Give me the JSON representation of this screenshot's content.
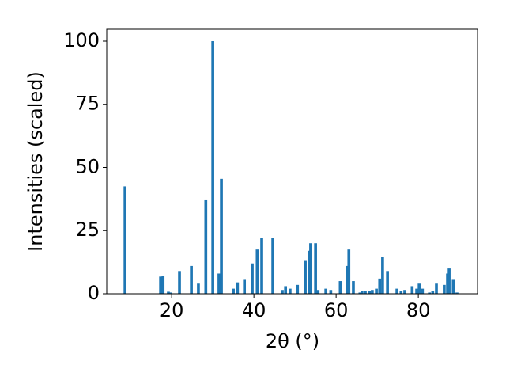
{
  "chart_data": {
    "type": "bar",
    "xlabel": "2θ (°)",
    "ylabel": "Intensities (scaled)",
    "x": [
      8.65,
      17.3,
      17.9,
      19.2,
      19.8,
      21.9,
      24.8,
      26.5,
      28.3,
      30.0,
      31.5,
      32.1,
      35.0,
      36.0,
      37.7,
      39.6,
      40.8,
      41.9,
      44.6,
      46.9,
      47.7,
      48.8,
      50.6,
      52.5,
      53.5,
      53.8,
      55.0,
      55.6,
      57.5,
      58.7,
      61.0,
      62.7,
      63.1,
      64.2,
      65.8,
      66.3,
      67.1,
      68.1,
      68.8,
      69.8,
      70.6,
      71.3,
      72.5,
      74.8,
      75.8,
      76.7,
      78.5,
      79.6,
      80.2,
      81.0,
      82.7,
      83.5,
      84.4,
      86.3,
      87.1,
      87.5,
      88.5,
      89.4
    ],
    "values": [
      42.5,
      6.8,
      7,
      0.8,
      0.5,
      9,
      11,
      4,
      37,
      100,
      8,
      45.5,
      2,
      4.5,
      5.5,
      12,
      17.5,
      22,
      22,
      1.5,
      3,
      2,
      3.5,
      13,
      17,
      20,
      20,
      1.5,
      2,
      1.5,
      5,
      11,
      17.5,
      5,
      0.5,
      1,
      1,
      1.2,
      1.5,
      2,
      6,
      14.5,
      9,
      2,
      1,
      1.5,
      3,
      2,
      4,
      2,
      0.5,
      1,
      4,
      3.5,
      8,
      10,
      5.5,
      0.5
    ],
    "color": "#1f77b4",
    "xlim": [
      4.2,
      94.4
    ],
    "ylim": [
      0,
      104.7
    ],
    "xticks": [
      20,
      40,
      60,
      80
    ],
    "yticks": [
      0,
      25,
      50,
      75,
      100
    ]
  }
}
